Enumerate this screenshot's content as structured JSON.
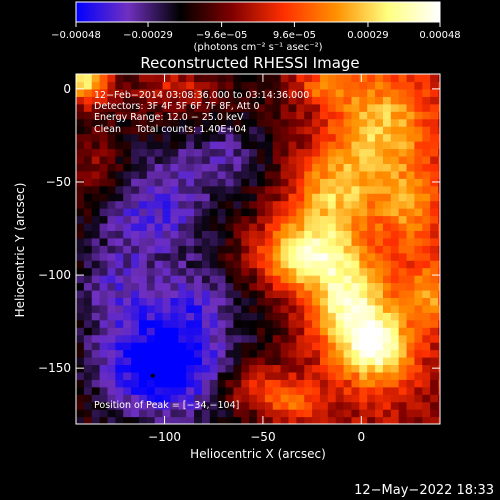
{
  "chart_data": {
    "type": "heatmap",
    "title": "Reconstructed RHESSI Image",
    "xlabel": "Heliocentric X (arcsec)",
    "ylabel": "Heliocentric Y (arcsec)",
    "xlim": [
      -145,
      40
    ],
    "ylim": [
      -180,
      8
    ],
    "x_ticks": [
      {
        "value": -100,
        "label": "−100"
      },
      {
        "value": -50,
        "label": "−50"
      },
      {
        "value": 0,
        "label": "0"
      }
    ],
    "y_ticks": [
      {
        "value": 0,
        "label": "0"
      },
      {
        "value": -50,
        "label": "−50"
      },
      {
        "value": -100,
        "label": "−100"
      },
      {
        "value": -150,
        "label": "−150"
      }
    ],
    "colorbar": {
      "range": [
        -0.00048,
        0.00048
      ],
      "ticks": [
        {
          "value": -0.00048,
          "label": "−0.00048"
        },
        {
          "value": -0.00029,
          "label": "−0.00029"
        },
        {
          "value": -9.6e-05,
          "label": "−9.6e−05"
        },
        {
          "value": 9.6e-05,
          "label": "9.6e−05"
        },
        {
          "value": 0.00029,
          "label": "0.00029"
        },
        {
          "value": 0.00048,
          "label": "0.00048"
        }
      ],
      "unit_label": "(photons cm⁻² s⁻¹ asec⁻²)",
      "colors": [
        "#0000ff",
        "#7030c0",
        "#000000",
        "#800000",
        "#ff3000",
        "#ff9000",
        "#ffff80",
        "#ffffff"
      ]
    },
    "annotations": [
      "12−Feb−2014 03:08:36.000 to 03:14:36.000",
      "Detectors: 3F 4F 5F 6F 7F 8F, Att 0",
      "Energy Range: 12.0 − 25.0 keV",
      "Clean     Total counts: 1.40E+04"
    ],
    "peak_label": "Position of Peak = [−34,−104]",
    "peak": [
      -34,
      -104
    ],
    "min_marker": [
      -106,
      -154
    ],
    "blobs": [
      {
        "x": -30,
        "y": -88,
        "sx": 18,
        "sy": 14,
        "a": 0.00045
      },
      {
        "x": -5,
        "y": -118,
        "sx": 14,
        "sy": 20,
        "a": 0.00042
      },
      {
        "x": 10,
        "y": -140,
        "sx": 12,
        "sy": 14,
        "a": 0.00036
      },
      {
        "x": 10,
        "y": -20,
        "sx": 18,
        "sy": 22,
        "a": 0.00032
      },
      {
        "x": -15,
        "y": -55,
        "sx": 15,
        "sy": 14,
        "a": 0.00028
      },
      {
        "x": 25,
        "y": -65,
        "sx": 12,
        "sy": 16,
        "a": 0.00022
      },
      {
        "x": -55,
        "y": -160,
        "sx": 14,
        "sy": 9,
        "a": 0.00022
      },
      {
        "x": -35,
        "y": -168,
        "sx": 10,
        "sy": 8,
        "a": 0.0002
      },
      {
        "x": -140,
        "y": 5,
        "sx": 9,
        "sy": 9,
        "a": 0.00048
      },
      {
        "x": -95,
        "y": 0,
        "sx": 14,
        "sy": 8,
        "a": 0.00018
      },
      {
        "x": -135,
        "y": -45,
        "sx": 10,
        "sy": 14,
        "a": 0.00014
      },
      {
        "x": -20,
        "y": 2,
        "sx": 10,
        "sy": 6,
        "a": 0.0002
      },
      {
        "x": 35,
        "y": -110,
        "sx": 9,
        "sy": 12,
        "a": 0.00025
      },
      {
        "x": -100,
        "y": -150,
        "sx": 22,
        "sy": 18,
        "a": -0.0004
      },
      {
        "x": -105,
        "y": -65,
        "sx": 22,
        "sy": 20,
        "a": -0.00022
      },
      {
        "x": -85,
        "y": -115,
        "sx": 18,
        "sy": 14,
        "a": -0.00018
      },
      {
        "x": -125,
        "y": -110,
        "sx": 14,
        "sy": 18,
        "a": -0.00016
      },
      {
        "x": -70,
        "y": -35,
        "sx": 16,
        "sy": 12,
        "a": -0.00014
      }
    ]
  },
  "footer": {
    "timestamp": "12−May−2022 18:33"
  }
}
